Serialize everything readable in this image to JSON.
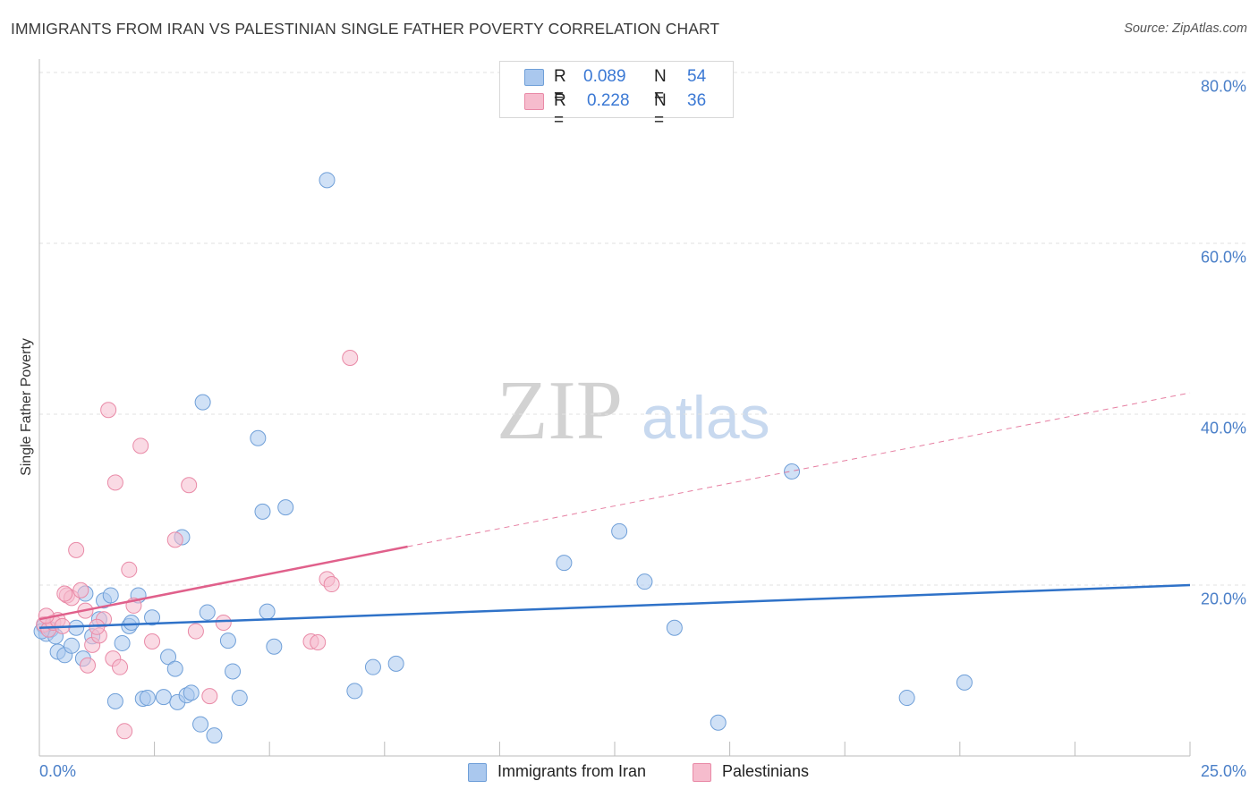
{
  "title": "IMMIGRANTS FROM IRAN VS PALESTINIAN SINGLE FATHER POVERTY CORRELATION CHART",
  "source": "Source: ZipAtlas.com",
  "watermark": {
    "zip": "ZIP",
    "atlas": "atlas"
  },
  "legend": {
    "iran": {
      "r_label": "R =",
      "r_value": "0.089",
      "n_label": "N =",
      "n_value": "54"
    },
    "pal": {
      "r_label": "R =",
      "r_value": "0.228",
      "n_label": "N =",
      "n_value": "36"
    }
  },
  "bottom_legend": {
    "iran": "Immigrants from Iran",
    "pal": "Palestinians"
  },
  "colors": {
    "iran_fill": "#aac8ee",
    "iran_stroke": "#6f9fd8",
    "iran_line": "#2f72c8",
    "pal_fill": "#f6bccd",
    "pal_stroke": "#e98aa7",
    "pal_line": "#e0608b",
    "grid": "#e2e2e2",
    "tick_text": "#4a7fc8"
  },
  "chart_data": {
    "type": "scatter",
    "title": "IMMIGRANTS FROM IRAN VS PALESTINIAN SINGLE FATHER POVERTY CORRELATION CHART",
    "xlabel": "",
    "ylabel": "Single Father Poverty",
    "xlim": [
      0,
      25
    ],
    "ylim": [
      0,
      80
    ],
    "x_tick_labels": [
      "0.0%",
      "25.0%"
    ],
    "y_ticks": [
      20,
      40,
      60,
      80
    ],
    "y_tick_labels": [
      "20.0%",
      "40.0%",
      "60.0%",
      "80.0%"
    ],
    "grid": true,
    "series": [
      {
        "name": "Immigrants from Iran",
        "r": 0.089,
        "n": 54,
        "trend": {
          "x0": 0,
          "y0": 15.0,
          "x1": 25,
          "y1": 20.0,
          "dashed_to": null
        },
        "points": [
          [
            0.1,
            15.2
          ],
          [
            0.15,
            14.3
          ],
          [
            0.25,
            14.8
          ],
          [
            0.35,
            14.0
          ],
          [
            0.4,
            12.2
          ],
          [
            0.55,
            11.8
          ],
          [
            0.7,
            12.9
          ],
          [
            0.8,
            15.0
          ],
          [
            0.95,
            11.4
          ],
          [
            1.0,
            19.0
          ],
          [
            1.15,
            14.0
          ],
          [
            1.3,
            16.0
          ],
          [
            1.4,
            18.2
          ],
          [
            1.55,
            18.8
          ],
          [
            1.65,
            6.4
          ],
          [
            1.8,
            13.2
          ],
          [
            1.95,
            15.2
          ],
          [
            2.0,
            15.6
          ],
          [
            2.15,
            18.8
          ],
          [
            2.25,
            6.7
          ],
          [
            2.35,
            6.8
          ],
          [
            2.45,
            16.2
          ],
          [
            2.7,
            6.9
          ],
          [
            2.8,
            11.6
          ],
          [
            2.95,
            10.2
          ],
          [
            3.0,
            6.3
          ],
          [
            3.1,
            25.6
          ],
          [
            3.2,
            7.1
          ],
          [
            3.3,
            7.4
          ],
          [
            3.5,
            3.7
          ],
          [
            3.55,
            41.4
          ],
          [
            3.65,
            16.8
          ],
          [
            3.8,
            2.4
          ],
          [
            4.1,
            13.5
          ],
          [
            4.2,
            9.9
          ],
          [
            4.35,
            6.8
          ],
          [
            4.75,
            37.2
          ],
          [
            4.85,
            28.6
          ],
          [
            4.95,
            16.9
          ],
          [
            5.1,
            12.8
          ],
          [
            5.35,
            29.1
          ],
          [
            6.25,
            67.4
          ],
          [
            6.85,
            7.6
          ],
          [
            7.25,
            10.4
          ],
          [
            7.75,
            10.8
          ],
          [
            11.4,
            22.6
          ],
          [
            12.6,
            26.3
          ],
          [
            13.15,
            20.4
          ],
          [
            13.8,
            15.0
          ],
          [
            14.75,
            3.9
          ],
          [
            16.35,
            33.3
          ],
          [
            18.85,
            6.8
          ],
          [
            20.1,
            8.6
          ],
          [
            0.05,
            14.6
          ]
        ]
      },
      {
        "name": "Palestinians",
        "r": 0.228,
        "n": 36,
        "trend": {
          "x0": 0,
          "y0": 16.0,
          "x1": 8.0,
          "y1": 24.5,
          "dashed_to": {
            "x": 25,
            "y": 42.5
          }
        },
        "points": [
          [
            0.1,
            15.4
          ],
          [
            0.2,
            14.8
          ],
          [
            0.3,
            15.6
          ],
          [
            0.4,
            15.9
          ],
          [
            0.5,
            15.2
          ],
          [
            0.6,
            18.8
          ],
          [
            0.7,
            18.5
          ],
          [
            0.8,
            24.1
          ],
          [
            0.9,
            19.4
          ],
          [
            1.0,
            17.0
          ],
          [
            1.05,
            10.6
          ],
          [
            1.15,
            13.0
          ],
          [
            1.3,
            14.1
          ],
          [
            1.4,
            16.0
          ],
          [
            1.5,
            40.5
          ],
          [
            1.6,
            11.4
          ],
          [
            1.65,
            32.0
          ],
          [
            1.75,
            10.4
          ],
          [
            1.85,
            2.9
          ],
          [
            1.95,
            21.8
          ],
          [
            2.05,
            17.6
          ],
          [
            2.2,
            36.3
          ],
          [
            2.45,
            13.4
          ],
          [
            2.95,
            25.3
          ],
          [
            3.25,
            31.7
          ],
          [
            3.4,
            14.6
          ],
          [
            3.7,
            7.0
          ],
          [
            4.0,
            15.6
          ],
          [
            5.9,
            13.4
          ],
          [
            6.05,
            13.3
          ],
          [
            6.25,
            20.7
          ],
          [
            6.35,
            20.1
          ],
          [
            6.75,
            46.6
          ],
          [
            0.55,
            19.0
          ],
          [
            1.25,
            15.1
          ],
          [
            0.15,
            16.4
          ]
        ]
      }
    ]
  }
}
